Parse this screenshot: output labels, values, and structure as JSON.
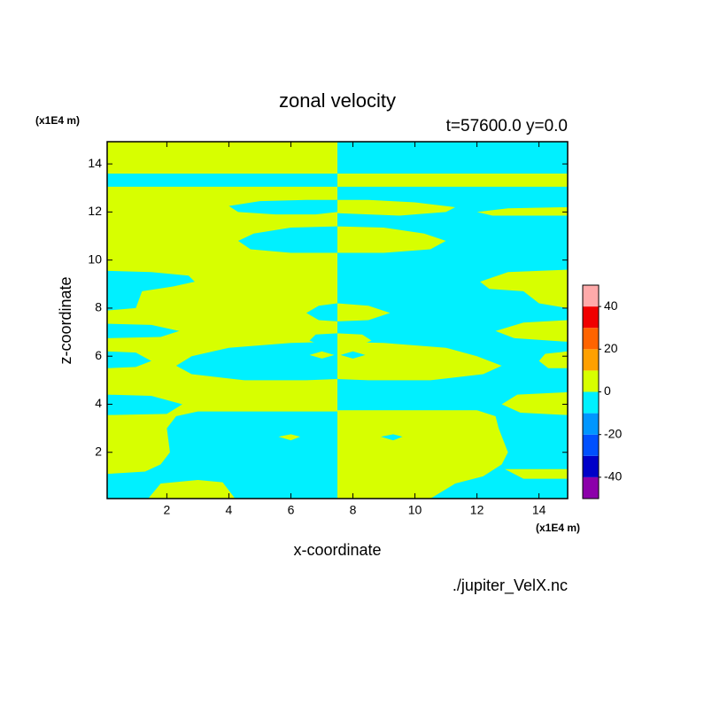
{
  "chart_data": {
    "type": "contour",
    "title": "zonal velocity",
    "subtitle": "t=57600.0 y=0.0",
    "x_label": "x-coordinate",
    "y_label": "z-coordinate",
    "x_unit": "(x1E4 m)",
    "y_unit": "(x1E4 m)",
    "source": "./jupiter_VelX.nc",
    "xlim": [
      0.075,
      14.925
    ],
    "ylim": [
      0.075,
      14.925
    ],
    "xticks": [
      2,
      4,
      6,
      8,
      10,
      12,
      14
    ],
    "yticks": [
      2,
      4,
      6,
      8,
      10,
      12,
      14
    ],
    "levels": [
      -50,
      -40,
      -30,
      -20,
      -10,
      0,
      10,
      20,
      30,
      40,
      50
    ],
    "colors": [
      "#8c00aa",
      "#0000c8",
      "#0050ff",
      "#0096ff",
      "#00f0ff",
      "#d7ff00",
      "#ffa000",
      "#ff6400",
      "#f00000",
      "#ffaaaa"
    ],
    "colorbar_ticks": [
      -40,
      -20,
      0,
      20,
      40
    ],
    "regions": [
      {
        "value": 5,
        "x": [
          0.075,
          7.5,
          7.5,
          0.075
        ],
        "z": [
          0.075,
          0.075,
          14.925,
          14.925
        ]
      },
      {
        "value": -5,
        "x": [
          7.5,
          14.925,
          14.925,
          7.5
        ],
        "z": [
          0.075,
          0.075,
          14.925,
          14.925
        ]
      },
      {
        "value": -5,
        "x": [
          0.075,
          7.5,
          7.5,
          0.075
        ],
        "z": [
          13.05,
          13.05,
          13.6,
          13.6
        ]
      },
      {
        "value": 5,
        "x": [
          7.5,
          14.925,
          14.925,
          7.5
        ],
        "z": [
          13.05,
          13.05,
          13.6,
          13.6
        ]
      },
      {
        "value": -5,
        "x": [
          7.5,
          6.5,
          5,
          4.0,
          4.3,
          5.5,
          6.8,
          7.5
        ],
        "z": [
          12.5,
          12.5,
          12.45,
          12.25,
          12.0,
          11.9,
          11.9,
          12.0
        ]
      },
      {
        "value": 5,
        "x": [
          7.5,
          8.5,
          10,
          11.3,
          11,
          9.5,
          7.5
        ],
        "z": [
          12.5,
          12.5,
          12.4,
          12.2,
          12.0,
          11.85,
          11.95
        ]
      },
      {
        "value": 5,
        "x": [
          12,
          13,
          14.925,
          14.925,
          12.5
        ],
        "z": [
          12.0,
          12.15,
          12.2,
          11.85,
          11.85
        ]
      },
      {
        "value": -5,
        "x": [
          7.5,
          6,
          4.8,
          4.3,
          4.7,
          6,
          7.5
        ],
        "z": [
          11.4,
          11.35,
          11.1,
          10.8,
          10.45,
          10.3,
          10.3
        ]
      },
      {
        "value": 5,
        "x": [
          7.5,
          9,
          10.3,
          11.0,
          10.5,
          9,
          7.5
        ],
        "z": [
          11.4,
          11.35,
          11.1,
          10.8,
          10.45,
          10.3,
          10.3
        ]
      },
      {
        "value": -5,
        "x": [
          0.075,
          1.5,
          2.7,
          2.9,
          2.2,
          1.2,
          1.0,
          0.075
        ],
        "z": [
          9.55,
          9.5,
          9.35,
          9.1,
          8.9,
          8.7,
          8.0,
          7.9
        ]
      },
      {
        "value": 5,
        "x": [
          14.925,
          13,
          12.1,
          12.4,
          13.5,
          14,
          14.925
        ],
        "z": [
          9.6,
          9.5,
          9.1,
          8.8,
          8.7,
          8.2,
          8.0
        ]
      },
      {
        "value": -5,
        "x": [
          7.5,
          6.9,
          6.5,
          6.9,
          7.5
        ],
        "z": [
          8.2,
          8.1,
          7.8,
          7.5,
          7.45
        ]
      },
      {
        "value": 5,
        "x": [
          7.5,
          8.5,
          9.2,
          8.5,
          7.5
        ],
        "z": [
          8.2,
          8.1,
          7.8,
          7.5,
          7.45
        ]
      },
      {
        "value": -5,
        "x": [
          0.075,
          1.5,
          2.4,
          1.8,
          0.075
        ],
        "z": [
          7.35,
          7.3,
          7.05,
          6.8,
          6.75
        ]
      },
      {
        "value": 5,
        "x": [
          14.925,
          13.5,
          12.6,
          13.2,
          14.925
        ],
        "z": [
          7.5,
          7.4,
          7.05,
          6.75,
          6.6
        ]
      },
      {
        "value": -5,
        "x": [
          7.5,
          6.8,
          6.6,
          7.0,
          7.5
        ],
        "z": [
          6.95,
          6.9,
          6.65,
          6.45,
          6.45
        ]
      },
      {
        "value": 5,
        "x": [
          7.5,
          8.3,
          8.6,
          8.2,
          7.5
        ],
        "z": [
          6.95,
          6.9,
          6.65,
          6.45,
          6.45
        ]
      },
      {
        "value": -5,
        "x": [
          7.5,
          6,
          4,
          2.8,
          2.3,
          2.8,
          4.5,
          6.5,
          7.5
        ],
        "z": [
          6.6,
          6.55,
          6.35,
          6.0,
          5.6,
          5.25,
          5.0,
          5.0,
          5.05
        ]
      },
      {
        "value": 5,
        "x": [
          7.5,
          9,
          11,
          12,
          12.8,
          12.2,
          10.5,
          8.5,
          7.5
        ],
        "z": [
          6.6,
          6.55,
          6.35,
          6.0,
          5.6,
          5.25,
          5.0,
          5.0,
          5.05
        ]
      },
      {
        "value": 5,
        "x": [
          6.6,
          7.0,
          7.4,
          7.0
        ],
        "z": [
          6.05,
          6.2,
          6.05,
          5.9
        ]
      },
      {
        "value": -5,
        "x": [
          7.6,
          8.0,
          8.4,
          8.0
        ],
        "z": [
          6.05,
          6.2,
          6.05,
          5.9
        ]
      },
      {
        "value": -5,
        "x": [
          0.075,
          1.0,
          1.5,
          1.0,
          0.075
        ],
        "z": [
          6.2,
          6.15,
          5.8,
          5.55,
          5.5
        ]
      },
      {
        "value": 5,
        "x": [
          14.925,
          14.2,
          14.0,
          14.3,
          14.925
        ],
        "z": [
          6.2,
          6.1,
          5.8,
          5.5,
          5.5
        ]
      },
      {
        "value": -5,
        "x": [
          0.075,
          1.5,
          2.5,
          2.0,
          0.075
        ],
        "z": [
          4.4,
          4.35,
          4.0,
          3.6,
          3.55
        ]
      },
      {
        "value": 5,
        "x": [
          14.925,
          13.3,
          12.8,
          13.4,
          14.925
        ],
        "z": [
          4.5,
          4.4,
          4.0,
          3.65,
          3.55
        ]
      },
      {
        "value": -5,
        "x": [
          7.5,
          3.0,
          2.3,
          2.0,
          2.1,
          1.8,
          1.3,
          0.075,
          0.075,
          7.5
        ],
        "z": [
          3.7,
          3.7,
          3.5,
          3.0,
          2.0,
          1.5,
          1.2,
          1.1,
          0.075,
          0.075
        ]
      },
      {
        "value": 5,
        "x": [
          1.4,
          1.8,
          3.0,
          3.8,
          4.2
        ],
        "z": [
          0.075,
          0.7,
          0.85,
          0.75,
          0.075
        ]
      },
      {
        "value": 5,
        "x": [
          5.6,
          6.0,
          6.3,
          6.0
        ],
        "z": [
          2.65,
          2.75,
          2.65,
          2.5
        ]
      },
      {
        "value": 5,
        "x": [
          7.5,
          12,
          12.6,
          12.7,
          13.0,
          12.8,
          12.2,
          11.3,
          10.5,
          7.5
        ],
        "z": [
          3.75,
          3.75,
          3.5,
          3.0,
          2.0,
          1.5,
          1.0,
          0.7,
          0.075,
          0.075
        ]
      },
      {
        "value": 5,
        "x": [
          12.9,
          14.925,
          14.925,
          13.5
        ],
        "z": [
          1.3,
          1.3,
          0.9,
          0.9
        ]
      },
      {
        "value": -5,
        "x": [
          8.9,
          9.3,
          9.6,
          9.3
        ],
        "z": [
          2.65,
          2.75,
          2.65,
          2.5
        ]
      }
    ]
  }
}
